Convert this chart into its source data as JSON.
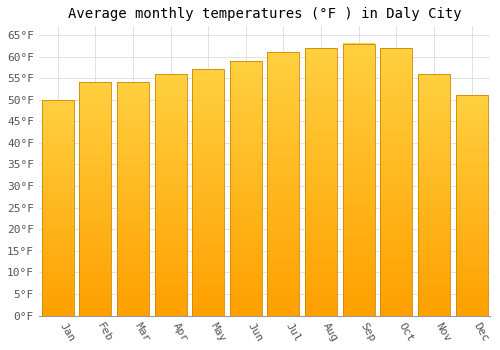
{
  "title": "Average monthly temperatures (°F ) in Daly City",
  "months": [
    "Jan",
    "Feb",
    "Mar",
    "Apr",
    "May",
    "Jun",
    "Jul",
    "Aug",
    "Sep",
    "Oct",
    "Nov",
    "Dec"
  ],
  "values": [
    50,
    54,
    54,
    56,
    57,
    59,
    61,
    62,
    63,
    62,
    56,
    51
  ],
  "bar_color_top": "#FFD040",
  "bar_color_bottom": "#FFA000",
  "bar_edge_color": "#CC8800",
  "background_color": "#FFFFFF",
  "grid_color": "#DDDDDD",
  "ylim": [
    0,
    67
  ],
  "yticks": [
    0,
    5,
    10,
    15,
    20,
    25,
    30,
    35,
    40,
    45,
    50,
    55,
    60,
    65
  ],
  "title_fontsize": 10,
  "tick_fontsize": 8,
  "font_family": "monospace",
  "bar_width": 0.85
}
